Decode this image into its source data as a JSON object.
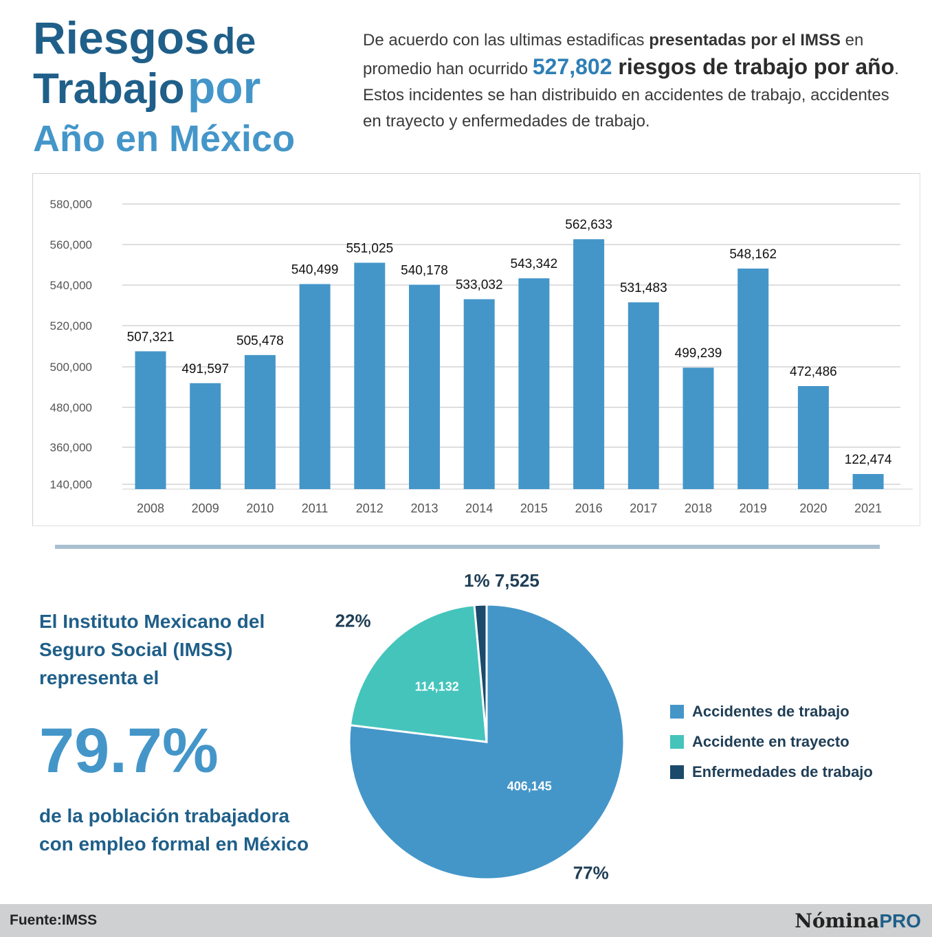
{
  "header": {
    "title_line1_big": "Riesgos",
    "title_line1_small": "de",
    "title_line2_big": "Trabajo",
    "title_line2_accent": "por",
    "title_line3": "Año en México"
  },
  "intro": {
    "part1": "De acuerdo con las ultimas estadificas ",
    "bold1": "presentadas por el IMSS",
    "part2": " en promedio han ocurrido ",
    "number": "527,802",
    "bold2": " riesgos de trabajo por año",
    "part3": ". Estos incidentes se han distribuido en accidentes de trabajo, accidentes en trayecto y enfermedades de trabajo."
  },
  "imss_panel": {
    "line1": "El Instituto Mexicano del Seguro Social (IMSS) representa el",
    "percent": "79.7%",
    "line2": "de la población trabajadora con empleo formal en México"
  },
  "footer": {
    "source": "Fuente:IMSS",
    "brand_a": "Nómina",
    "brand_b": "PRO"
  },
  "chart_data": [
    {
      "type": "bar",
      "categories": [
        "2008",
        "2009",
        "2010",
        "2011",
        "2012",
        "2013",
        "2014",
        "2015",
        "2016",
        "2017",
        "2018",
        "2019",
        "2020",
        "2021"
      ],
      "values": [
        507321,
        491597,
        505478,
        540499,
        551025,
        540178,
        533032,
        543342,
        562633,
        531483,
        499239,
        548162,
        472486,
        122474
      ],
      "value_labels": [
        "507,321",
        "491,597",
        "505,478",
        "540,499",
        "551,025",
        "540,178",
        "533,032",
        "543,342",
        "562,633",
        "531,483",
        "499,239",
        "548,162",
        "472,486",
        "122,474"
      ],
      "y_tick_labels": [
        "580,000",
        "560,000",
        "540,000",
        "520,000",
        "500,000",
        "480,000",
        "360,000",
        "140,000"
      ],
      "color": "#4496c9",
      "grid": true
    },
    {
      "type": "pie",
      "slices": [
        {
          "name": "Accidentes de trabajo",
          "value": 406145,
          "label": "406,145",
          "percent_label": "77%",
          "color": "#4496c9"
        },
        {
          "name": "Accidente en trayecto",
          "value": 114132,
          "label": "114,132",
          "percent_label": "22%",
          "color": "#45c4bc"
        },
        {
          "name": "Enfermedades de trabajo",
          "value": 7525,
          "label": "7,525",
          "percent_label": "1%",
          "color": "#1b4a6b"
        }
      ],
      "legend_position": "right"
    }
  ]
}
